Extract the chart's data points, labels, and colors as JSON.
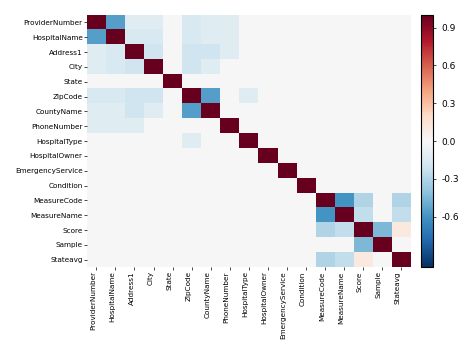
{
  "labels": [
    "ProviderNumber",
    "HospitalName",
    "Address1",
    "City",
    "State",
    "ZipCode",
    "CountyName",
    "PhoneNumber",
    "HospitalType",
    "HospitalOwner",
    "EmergencyService",
    "Condition",
    "MeasureCode",
    "MeasureName",
    "Score",
    "Sample",
    "Stateavg"
  ],
  "vmin": -1.0,
  "vmax": 1.0,
  "cmap": "RdBu_r",
  "colorbar_ticks": [
    0.9,
    0.6,
    0.3,
    0.0,
    -0.3,
    -0.6
  ],
  "matrix": [
    [
      1.0,
      -0.55,
      -0.12,
      -0.12,
      0.0,
      -0.15,
      -0.12,
      -0.12,
      0.0,
      0.0,
      0.0,
      0.0,
      0.0,
      0.0,
      0.0,
      0.0,
      0.0
    ],
    [
      -0.55,
      1.0,
      -0.15,
      -0.15,
      0.0,
      -0.15,
      -0.12,
      -0.12,
      0.0,
      0.0,
      0.0,
      0.0,
      0.0,
      0.0,
      0.0,
      0.0,
      0.0
    ],
    [
      -0.12,
      -0.15,
      1.0,
      -0.2,
      0.0,
      -0.2,
      -0.2,
      -0.12,
      0.0,
      0.0,
      0.0,
      0.0,
      0.0,
      0.0,
      0.0,
      0.0,
      0.0
    ],
    [
      -0.12,
      -0.15,
      -0.2,
      1.0,
      0.0,
      -0.2,
      -0.12,
      0.0,
      0.0,
      0.0,
      0.0,
      0.0,
      0.0,
      0.0,
      0.0,
      0.0,
      0.0
    ],
    [
      0.0,
      0.0,
      0.0,
      0.0,
      1.0,
      0.0,
      0.0,
      0.0,
      0.0,
      0.0,
      0.0,
      0.0,
      0.0,
      0.0,
      0.0,
      0.0,
      0.0
    ],
    [
      -0.15,
      -0.15,
      -0.2,
      -0.2,
      0.0,
      1.0,
      -0.55,
      0.0,
      -0.12,
      0.0,
      0.0,
      0.0,
      0.0,
      0.0,
      0.0,
      0.0,
      0.0
    ],
    [
      -0.12,
      -0.12,
      -0.2,
      -0.12,
      0.0,
      -0.55,
      1.0,
      0.0,
      0.0,
      0.0,
      0.0,
      0.0,
      0.0,
      0.0,
      0.0,
      0.0,
      0.0
    ],
    [
      -0.12,
      -0.12,
      -0.12,
      0.0,
      0.0,
      0.0,
      0.0,
      1.0,
      0.0,
      0.0,
      0.0,
      0.0,
      0.0,
      0.0,
      0.0,
      0.0,
      0.0
    ],
    [
      0.0,
      0.0,
      0.0,
      0.0,
      0.0,
      -0.12,
      0.0,
      0.0,
      1.0,
      0.0,
      0.0,
      0.0,
      0.0,
      0.0,
      0.0,
      0.0,
      0.0
    ],
    [
      0.0,
      0.0,
      0.0,
      0.0,
      0.0,
      0.0,
      0.0,
      0.0,
      0.0,
      1.0,
      0.0,
      0.0,
      0.0,
      0.0,
      0.0,
      0.0,
      0.0
    ],
    [
      0.0,
      0.0,
      0.0,
      0.0,
      0.0,
      0.0,
      0.0,
      0.0,
      0.0,
      0.0,
      1.0,
      0.0,
      0.0,
      0.0,
      0.0,
      0.0,
      0.0
    ],
    [
      0.0,
      0.0,
      0.0,
      0.0,
      0.0,
      0.0,
      0.0,
      0.0,
      0.0,
      0.0,
      0.0,
      1.0,
      0.0,
      0.0,
      0.0,
      0.0,
      0.0
    ],
    [
      0.0,
      0.0,
      0.0,
      0.0,
      0.0,
      0.0,
      0.0,
      0.0,
      0.0,
      0.0,
      0.0,
      0.0,
      1.0,
      -0.6,
      -0.3,
      0.0,
      -0.3
    ],
    [
      0.0,
      0.0,
      0.0,
      0.0,
      0.0,
      0.0,
      0.0,
      0.0,
      0.0,
      0.0,
      0.0,
      0.0,
      -0.6,
      1.0,
      -0.25,
      0.0,
      -0.25
    ],
    [
      0.0,
      0.0,
      0.0,
      0.0,
      0.0,
      0.0,
      0.0,
      0.0,
      0.0,
      0.0,
      0.0,
      0.0,
      -0.3,
      -0.25,
      1.0,
      -0.45,
      0.1
    ],
    [
      0.0,
      0.0,
      0.0,
      0.0,
      0.0,
      0.0,
      0.0,
      0.0,
      0.0,
      0.0,
      0.0,
      0.0,
      0.0,
      0.0,
      -0.45,
      1.0,
      0.0
    ],
    [
      0.0,
      0.0,
      0.0,
      0.0,
      0.0,
      0.0,
      0.0,
      0.0,
      0.0,
      0.0,
      0.0,
      0.0,
      -0.3,
      -0.25,
      0.1,
      0.0,
      1.0
    ]
  ]
}
